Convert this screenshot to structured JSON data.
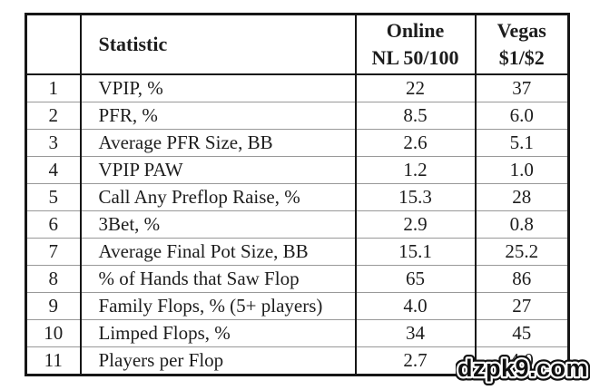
{
  "colors": {
    "background": "#ffffff",
    "table_border": "#161616",
    "row_divider": "#999999",
    "text": "#1d1d1d",
    "watermark_fill": "#101010",
    "watermark_outline": "#ffffff"
  },
  "table": {
    "header": {
      "corner": "",
      "statistic": "Statistic",
      "online": [
        "Online",
        "NL 50/100"
      ],
      "vegas": [
        "Vegas",
        "$1/$2"
      ]
    },
    "rows": [
      {
        "num": "1",
        "stat": "VPIP, %",
        "online": "22",
        "vegas": "37"
      },
      {
        "num": "2",
        "stat": "PFR, %",
        "online": "8.5",
        "vegas": "6.0"
      },
      {
        "num": "3",
        "stat": "Average PFR Size, BB",
        "online": "2.6",
        "vegas": "5.1"
      },
      {
        "num": "4",
        "stat": "VPIP PAW",
        "online": "1.2",
        "vegas": "1.0"
      },
      {
        "num": "5",
        "stat": "Call Any Preflop Raise, %",
        "online": "15.3",
        "vegas": "28"
      },
      {
        "num": "6",
        "stat": "3Bet, %",
        "online": "2.9",
        "vegas": "0.8"
      },
      {
        "num": "7",
        "stat": "Average Final Pot Size, BB",
        "online": "15.1",
        "vegas": "25.2"
      },
      {
        "num": "8",
        "stat": "% of Hands that Saw Flop",
        "online": "65",
        "vegas": "86"
      },
      {
        "num": "9",
        "stat": "Family Flops, % (5+ players)",
        "online": "4.0",
        "vegas": "27"
      },
      {
        "num": "10",
        "stat": "Limped Flops, %",
        "online": "34",
        "vegas": "45"
      },
      {
        "num": "11",
        "stat": "Players per Flop",
        "online": "2.7",
        "vegas": "4.0"
      }
    ]
  },
  "watermark": {
    "text": "dzpk9.com"
  },
  "chart_data": {
    "type": "table",
    "columns": [
      "#",
      "Statistic",
      "Online NL 50/100",
      "Vegas $1/$2"
    ],
    "rows": [
      [
        "1",
        "VPIP, %",
        "22",
        "37"
      ],
      [
        "2",
        "PFR, %",
        "8.5",
        "6.0"
      ],
      [
        "3",
        "Average PFR Size, BB",
        "2.6",
        "5.1"
      ],
      [
        "4",
        "VPIP PAW",
        "1.2",
        "1.0"
      ],
      [
        "5",
        "Call Any Preflop Raise, %",
        "15.3",
        "28"
      ],
      [
        "6",
        "3Bet, %",
        "2.9",
        "0.8"
      ],
      [
        "7",
        "Average Final Pot Size, BB",
        "15.1",
        "25.2"
      ],
      [
        "8",
        "% of Hands that Saw Flop",
        "65",
        "86"
      ],
      [
        "9",
        "Family Flops, % (5+ players)",
        "4.0",
        "27"
      ],
      [
        "10",
        "Limped Flops, %",
        "34",
        "45"
      ],
      [
        "11",
        "Players per Flop",
        "2.7",
        "4.0"
      ]
    ]
  }
}
